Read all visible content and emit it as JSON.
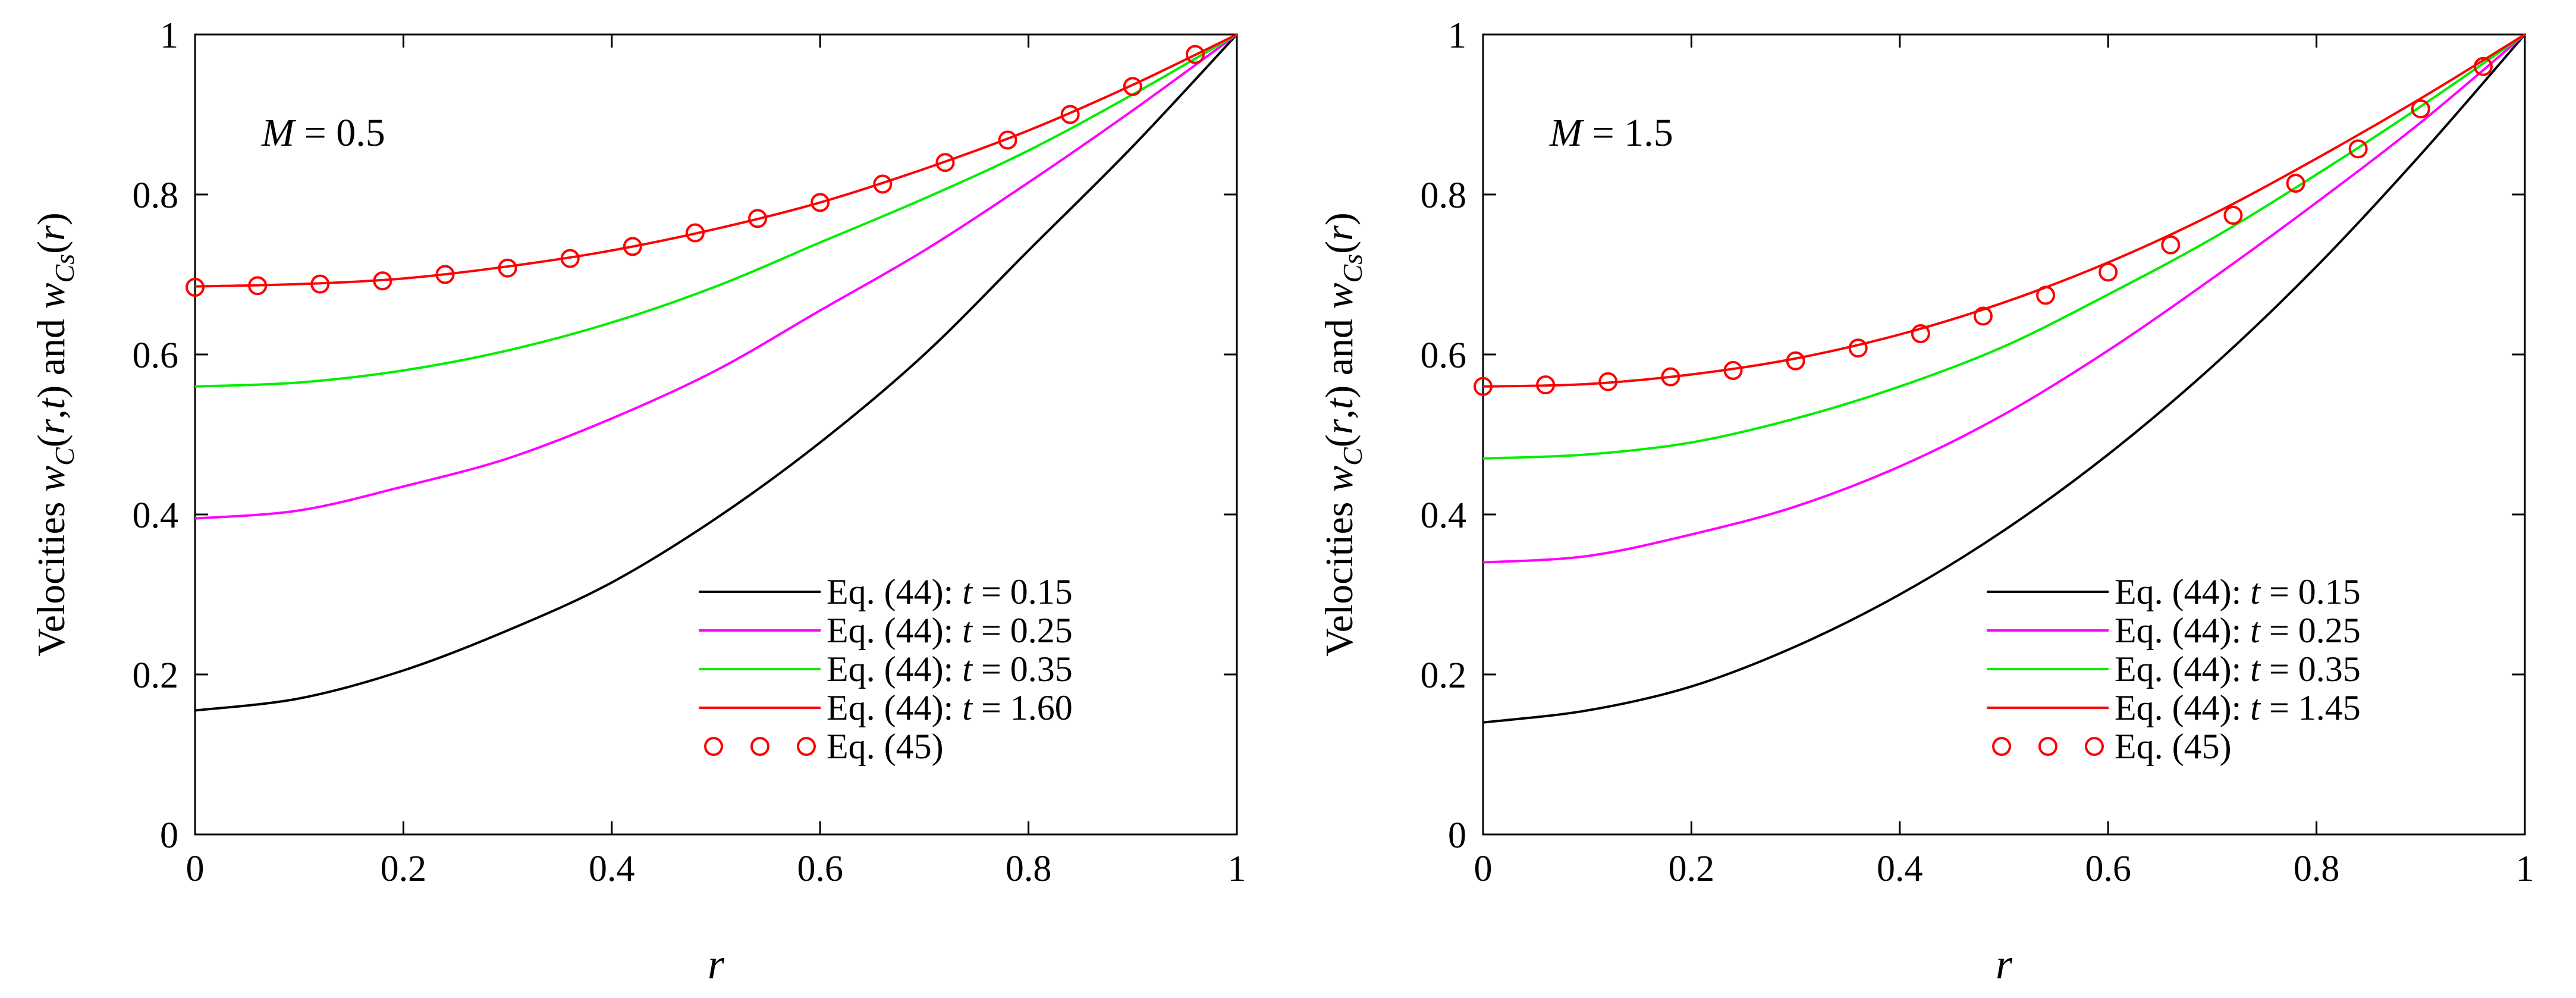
{
  "chart_data": [
    {
      "type": "line",
      "annotation": {
        "var": "M",
        "eq": " = 0.5"
      },
      "xlabel": "r",
      "ylabel": {
        "p1": "Velocities ",
        "w": "w",
        "sub_c": "C",
        "p2": "(",
        "r": "r",
        "comma": ",",
        "t": "t",
        "p3": ") and ",
        "w2": "w",
        "sub_cs": "Cs",
        "p4": "(",
        "r2": "r",
        "p5": ")"
      },
      "xlim": [
        0,
        1
      ],
      "ylim": [
        0,
        1
      ],
      "xticks": [
        "0",
        "0.2",
        "0.4",
        "0.6",
        "0.8",
        "1"
      ],
      "yticks": [
        "0",
        "0.2",
        "0.4",
        "0.6",
        "0.8",
        "1"
      ],
      "x": [
        0,
        0.1,
        0.2,
        0.3,
        0.4,
        0.5,
        0.6,
        0.7,
        0.8,
        0.9,
        1.0
      ],
      "series": [
        {
          "name": "Eq. (44): ",
          "tval": " = 0.15",
          "color": "#000000",
          "values": [
            0.155,
            0.17,
            0.205,
            0.255,
            0.315,
            0.395,
            0.49,
            0.6,
            0.73,
            0.86,
            1.0
          ]
        },
        {
          "name": "Eq. (44): ",
          "tval": " = 0.25",
          "color": "#ff00ff",
          "values": [
            0.395,
            0.405,
            0.435,
            0.47,
            0.52,
            0.58,
            0.655,
            0.73,
            0.815,
            0.905,
            1.0
          ]
        },
        {
          "name": "Eq. (44): ",
          "tval": " = 0.35",
          "color": "#00ee00",
          "values": [
            0.56,
            0.565,
            0.58,
            0.605,
            0.64,
            0.685,
            0.74,
            0.795,
            0.855,
            0.925,
            1.0
          ]
        },
        {
          "name": "Eq. (44): ",
          "tval": " = 1.60",
          "color": "#ff0000",
          "values": [
            0.685,
            0.688,
            0.695,
            0.71,
            0.73,
            0.757,
            0.79,
            0.832,
            0.88,
            0.937,
            1.0
          ]
        }
      ],
      "markers": {
        "name": "Eq. (45)",
        "color": "#ff0000",
        "x": [
          0,
          0.06,
          0.12,
          0.18,
          0.24,
          0.3,
          0.36,
          0.42,
          0.48,
          0.54,
          0.6,
          0.66,
          0.72,
          0.78,
          0.84,
          0.9,
          0.96
        ],
        "y": [
          0.684,
          0.686,
          0.688,
          0.692,
          0.7,
          0.708,
          0.72,
          0.735,
          0.752,
          0.77,
          0.79,
          0.813,
          0.84,
          0.868,
          0.9,
          0.935,
          0.975
        ]
      },
      "legend": "lower-right"
    },
    {
      "type": "line",
      "annotation": {
        "var": "M",
        "eq": " = 1.5"
      },
      "xlabel": "r",
      "ylabel": {
        "p1": "Velocities ",
        "w": "w",
        "sub_c": "C",
        "p2": "(",
        "r": "r",
        "comma": ",",
        "t": "t",
        "p3": ") and ",
        "w2": "w",
        "sub_cs": "Cs",
        "p4": "(",
        "r2": "r",
        "p5": ")"
      },
      "xlim": [
        0,
        1
      ],
      "ylim": [
        0,
        1
      ],
      "xticks": [
        "0",
        "0.2",
        "0.4",
        "0.6",
        "0.8",
        "1"
      ],
      "yticks": [
        "0",
        "0.2",
        "0.4",
        "0.6",
        "0.8",
        "1"
      ],
      "x": [
        0,
        0.1,
        0.2,
        0.3,
        0.4,
        0.5,
        0.6,
        0.7,
        0.8,
        0.9,
        1.0
      ],
      "series": [
        {
          "name": "Eq. (44): ",
          "tval": " = 0.15",
          "color": "#000000",
          "values": [
            0.14,
            0.155,
            0.185,
            0.235,
            0.3,
            0.38,
            0.475,
            0.585,
            0.71,
            0.85,
            1.0
          ]
        },
        {
          "name": "Eq. (44): ",
          "tval": " = 0.25",
          "color": "#ff00ff",
          "values": [
            0.34,
            0.348,
            0.375,
            0.41,
            0.46,
            0.525,
            0.605,
            0.695,
            0.79,
            0.89,
            1.0
          ]
        },
        {
          "name": "Eq. (44): ",
          "tval": " = 0.35",
          "color": "#00ee00",
          "values": [
            0.47,
            0.475,
            0.49,
            0.52,
            0.56,
            0.61,
            0.675,
            0.745,
            0.825,
            0.91,
            1.0
          ]
        },
        {
          "name": "Eq. (44): ",
          "tval": " = 1.45",
          "color": "#ff0000",
          "values": [
            0.56,
            0.563,
            0.575,
            0.595,
            0.625,
            0.665,
            0.715,
            0.775,
            0.845,
            0.92,
            1.0
          ]
        }
      ],
      "markers": {
        "name": "Eq. (45)",
        "color": "#ff0000",
        "x": [
          0,
          0.06,
          0.12,
          0.18,
          0.24,
          0.3,
          0.36,
          0.42,
          0.48,
          0.54,
          0.6,
          0.66,
          0.72,
          0.78,
          0.84,
          0.9,
          0.96
        ],
        "y": [
          0.56,
          0.562,
          0.566,
          0.572,
          0.58,
          0.592,
          0.608,
          0.626,
          0.648,
          0.674,
          0.703,
          0.737,
          0.774,
          0.814,
          0.857,
          0.907,
          0.96
        ]
      },
      "legend": "lower-right"
    }
  ]
}
